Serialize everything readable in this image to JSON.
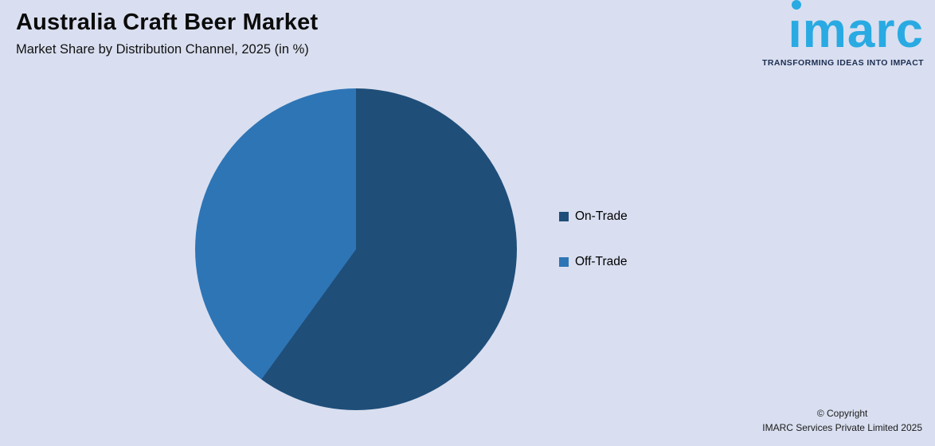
{
  "page": {
    "title": "Australia Craft Beer Market",
    "subtitle": "Market Share by Distribution Channel, 2025 (in %)"
  },
  "logo": {
    "text": "imarc",
    "tagline": "TRANSFORMING IDEAS INTO IMPACT",
    "color": "#29aae2",
    "tagline_color": "#1c2e52"
  },
  "chart_data": {
    "type": "pie",
    "title": "Australia Craft Beer Market",
    "subtitle": "Market Share by Distribution Channel, 2025 (in %)",
    "categories": [
      "On-Trade",
      "Off-Trade"
    ],
    "values": [
      60,
      40
    ],
    "colors": [
      "#1f4e79",
      "#2e75b6"
    ],
    "legend_position": "right",
    "start_angle_deg": 0,
    "direction": "clockwise",
    "unit": "%"
  },
  "footer": {
    "copyright_line1": "© Copyright",
    "copyright_line2": "IMARC Services Private Limited 2025"
  },
  "colors": {
    "background": "#d9dff0",
    "on_trade": "#1f4e79",
    "off_trade": "#2e75b6"
  }
}
